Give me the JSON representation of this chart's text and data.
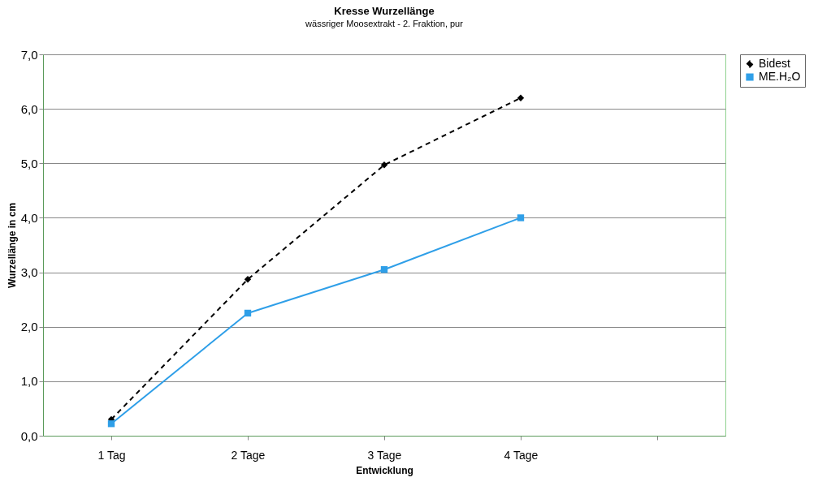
{
  "chart_data": {
    "type": "line",
    "title": "Kresse Wurzellänge",
    "subtitle": "wässriger Moosextrakt - 2. Fraktion, pur",
    "xlabel": "Entwicklung",
    "ylabel": "Wurzellänge in cm",
    "categories": [
      "1 Tag",
      "2 Tage",
      "3 Tage",
      "4 Tage",
      null
    ],
    "series": [
      {
        "name": "Bidest",
        "color": "#000000",
        "marker": "diamond",
        "line_style": "dashed",
        "values": [
          0.3,
          2.87,
          4.97,
          6.2,
          null
        ]
      },
      {
        "name": "ME.H₂O",
        "color": "#2f9fe8",
        "marker": "square",
        "line_style": "solid",
        "values": [
          0.22,
          2.25,
          3.05,
          4.0,
          null
        ]
      }
    ],
    "ylim": [
      0,
      7
    ],
    "yticks": [
      {
        "value": 0,
        "label": "0,0"
      },
      {
        "value": 1,
        "label": "1,0"
      },
      {
        "value": 2,
        "label": "2,0"
      },
      {
        "value": 3,
        "label": "3,0"
      },
      {
        "value": 4,
        "label": "4,0"
      },
      {
        "value": 5,
        "label": "5,0"
      },
      {
        "value": 6,
        "label": "6,0"
      },
      {
        "value": 7,
        "label": "7,0"
      }
    ],
    "grid": "y",
    "legend": "right"
  }
}
